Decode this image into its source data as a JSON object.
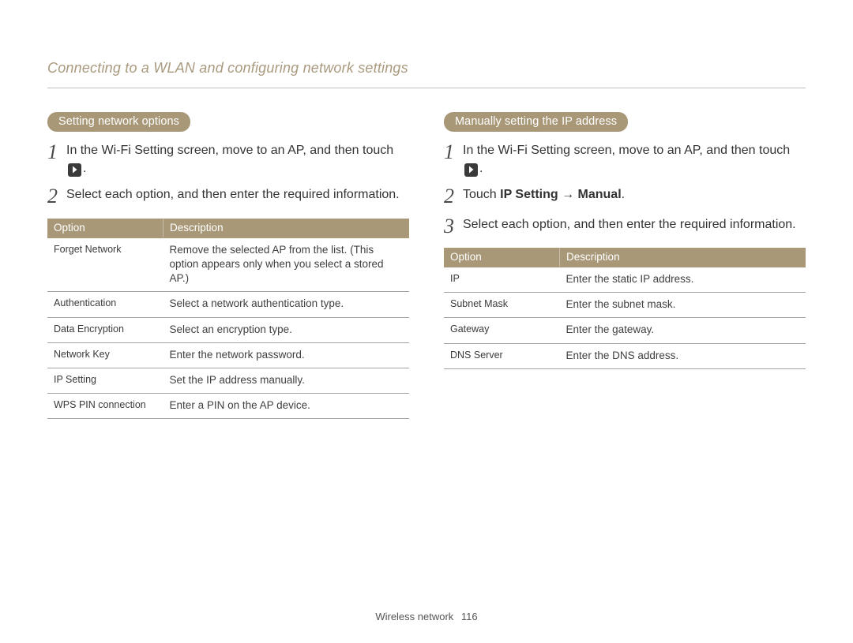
{
  "page": {
    "title": "Connecting to a WLAN and configuring network settings",
    "footer_section": "Wireless network",
    "page_number": "116",
    "colors": {
      "accent": "#a89878",
      "title": "#a99a7f",
      "text": "#3a3a3a",
      "rule": "#a3a3a3",
      "bg": "#ffffff"
    }
  },
  "left": {
    "pill": "Setting network options",
    "steps": [
      {
        "pre": "In the Wi-Fi Setting screen, move to an AP, and then touch ",
        "has_icon": true,
        "post": "."
      },
      {
        "pre": "Select each option, and then enter the required information.",
        "has_icon": false,
        "post": ""
      }
    ],
    "table": {
      "columns": [
        "Option",
        "Description"
      ],
      "rows": [
        [
          "Forget Network",
          "Remove the selected AP from the list. (This option appears only when you select a stored AP.)"
        ],
        [
          "Authentication",
          "Select a network authentication type."
        ],
        [
          "Data Encryption",
          "Select an encryption type."
        ],
        [
          "Network Key",
          "Enter the network password."
        ],
        [
          "IP Setting",
          "Set the IP address manually."
        ],
        [
          "WPS PIN connection",
          "Enter a PIN on the AP device."
        ]
      ]
    }
  },
  "right": {
    "pill": "Manually setting the IP address",
    "steps": [
      {
        "pre": "In the Wi-Fi Setting screen, move to an AP, and then touch ",
        "has_icon": true,
        "post": "."
      },
      {
        "pre": "Touch ",
        "bold": "IP Setting → Manual",
        "post": ".",
        "has_icon": false
      },
      {
        "pre": "Select each option, and then enter the required information.",
        "has_icon": false,
        "post": ""
      }
    ],
    "table": {
      "columns": [
        "Option",
        "Description"
      ],
      "rows": [
        [
          "IP",
          "Enter the static IP address."
        ],
        [
          "Subnet Mask",
          "Enter the subnet mask."
        ],
        [
          "Gateway",
          "Enter the gateway."
        ],
        [
          "DNS Server",
          "Enter the DNS address."
        ]
      ]
    }
  }
}
